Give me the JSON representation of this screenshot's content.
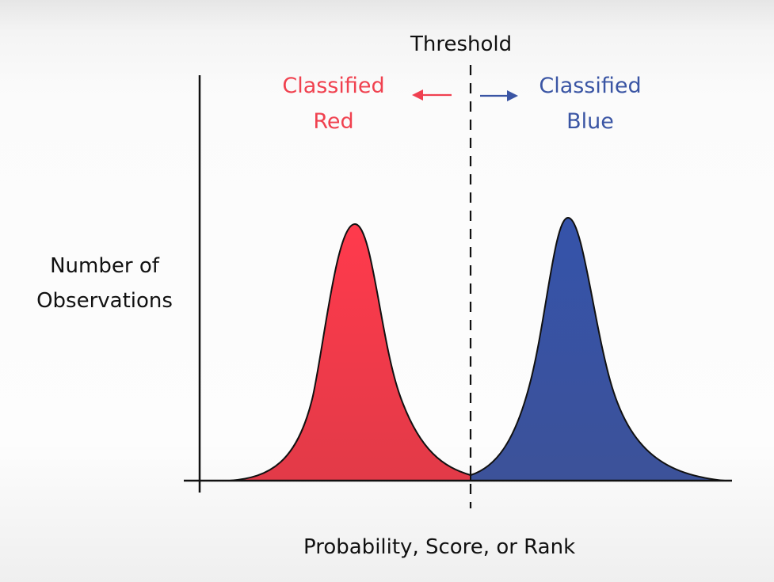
{
  "threshold_label": "Threshold",
  "left_class": {
    "line1": "Classified",
    "line2": "Red"
  },
  "right_class": {
    "line1": "Classified",
    "line2": "Blue"
  },
  "y_axis_label": {
    "line1": "Number of",
    "line2": "Observations"
  },
  "x_axis_label": "Probability, Score, or Rank",
  "colors": {
    "red": "#f04050",
    "blue": "#3a55a4",
    "red_text": "#f0414f",
    "blue_text": "#3a55a4",
    "axis": "#111111"
  }
}
